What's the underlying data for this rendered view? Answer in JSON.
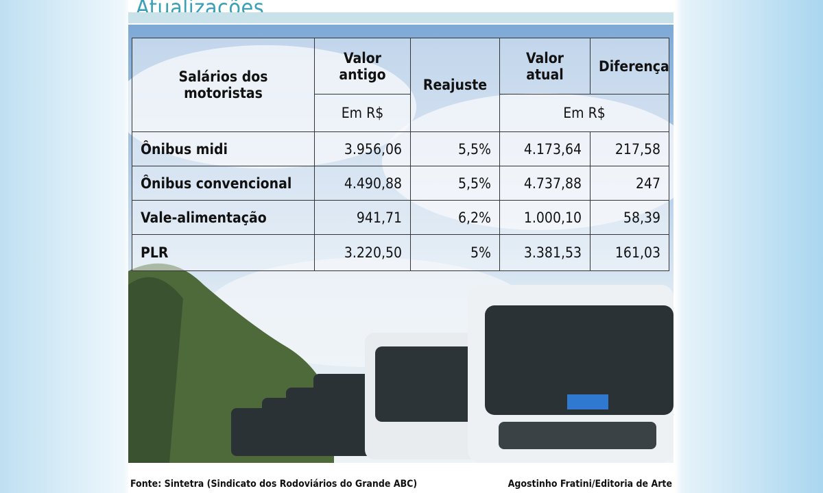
{
  "header": {
    "title": "Atualizações"
  },
  "table": {
    "head": {
      "item": "Salários dos motoristas",
      "old": "Valor antigo",
      "old_unit": "Em R$",
      "adjust": "Reajuste",
      "new": "Valor atual",
      "diff": "Diferença",
      "new_unit": "Em R$"
    },
    "rows": [
      [
        "Ônibus midi",
        "3.956,06",
        "5,5%",
        "4.173,64",
        "217,58"
      ],
      [
        "Ônibus convencional",
        "4.490,88",
        "5,5%",
        "4.737,88",
        "247"
      ],
      [
        "Vale-alimentação",
        "941,71",
        "6,2%",
        "1.000,10",
        "58,39"
      ],
      [
        "PLR",
        "3.220,50",
        "5%",
        "3.381,53",
        "161,03"
      ]
    ]
  },
  "footer": {
    "source": "Fonte: Sintetra (Sindicato dos Rodoviários do Grande ABC)",
    "credit": "Agostinho Fratini/Editoria de Arte"
  }
}
